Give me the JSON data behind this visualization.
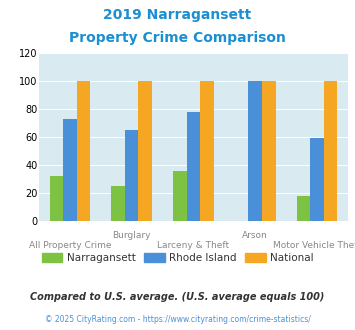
{
  "title_line1": "2019 Narragansett",
  "title_line2": "Property Crime Comparison",
  "groups": [
    "All Property Crime",
    "Burglary",
    "Larceny & Theft",
    "Arson",
    "Motor Vehicle Theft"
  ],
  "series": {
    "Narragansett": [
      32,
      25,
      36,
      0,
      18
    ],
    "Rhode Island": [
      73,
      65,
      78,
      100,
      59
    ],
    "National": [
      100,
      100,
      100,
      100,
      100
    ]
  },
  "colors": {
    "Narragansett": "#7dc242",
    "Rhode Island": "#4a90d9",
    "National": "#f5a623"
  },
  "ylim": [
    0,
    120
  ],
  "yticks": [
    0,
    20,
    40,
    60,
    80,
    100,
    120
  ],
  "legend_entries": [
    "Narragansett",
    "Rhode Island",
    "National"
  ],
  "footnote1": "Compared to U.S. average. (U.S. average equals 100)",
  "footnote2": "© 2025 CityRating.com - https://www.cityrating.com/crime-statistics/",
  "bg_color": "#daeaf1",
  "title_color": "#1a8fd1",
  "footnote1_color": "#333333",
  "footnote2_color": "#4a90d9",
  "bar_width": 0.22
}
